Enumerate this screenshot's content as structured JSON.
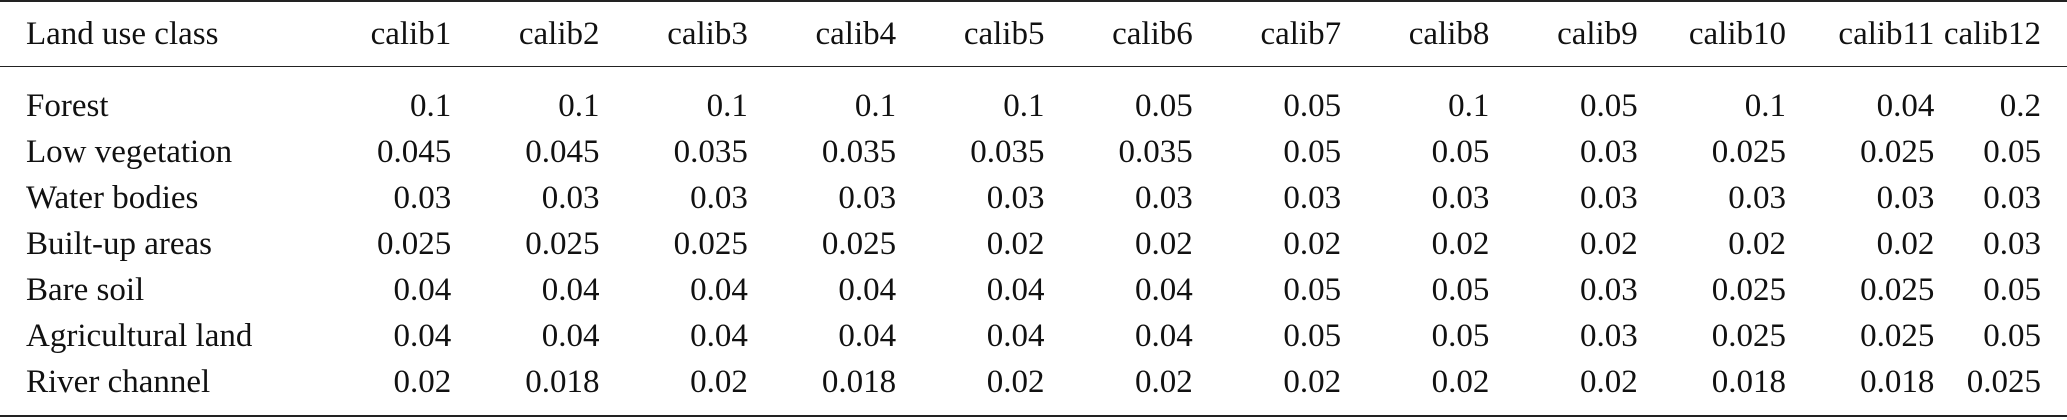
{
  "table": {
    "headers": [
      "Land use class",
      "calib1",
      "calib2",
      "calib3",
      "calib4",
      "calib5",
      "calib6",
      "calib7",
      "calib8",
      "calib9",
      "calib10",
      "calib11",
      "calib12"
    ],
    "rows": [
      [
        "Forest",
        "0.1",
        "0.1",
        "0.1",
        "0.1",
        "0.1",
        "0.05",
        "0.05",
        "0.1",
        "0.05",
        "0.1",
        "0.04",
        "0.2"
      ],
      [
        "Low vegetation",
        "0.045",
        "0.045",
        "0.035",
        "0.035",
        "0.035",
        "0.035",
        "0.05",
        "0.05",
        "0.03",
        "0.025",
        "0.025",
        "0.05"
      ],
      [
        "Water bodies",
        "0.03",
        "0.03",
        "0.03",
        "0.03",
        "0.03",
        "0.03",
        "0.03",
        "0.03",
        "0.03",
        "0.03",
        "0.03",
        "0.03"
      ],
      [
        "Built-up areas",
        "0.025",
        "0.025",
        "0.025",
        "0.025",
        "0.02",
        "0.02",
        "0.02",
        "0.02",
        "0.02",
        "0.02",
        "0.02",
        "0.03"
      ],
      [
        "Bare soil",
        "0.04",
        "0.04",
        "0.04",
        "0.04",
        "0.04",
        "0.04",
        "0.05",
        "0.05",
        "0.03",
        "0.025",
        "0.025",
        "0.05"
      ],
      [
        "Agricultural land",
        "0.04",
        "0.04",
        "0.04",
        "0.04",
        "0.04",
        "0.04",
        "0.05",
        "0.05",
        "0.03",
        "0.025",
        "0.025",
        "0.05"
      ],
      [
        "River channel",
        "0.02",
        "0.018",
        "0.02",
        "0.018",
        "0.02",
        "0.02",
        "0.02",
        "0.02",
        "0.02",
        "0.018",
        "0.018",
        "0.025"
      ]
    ]
  }
}
